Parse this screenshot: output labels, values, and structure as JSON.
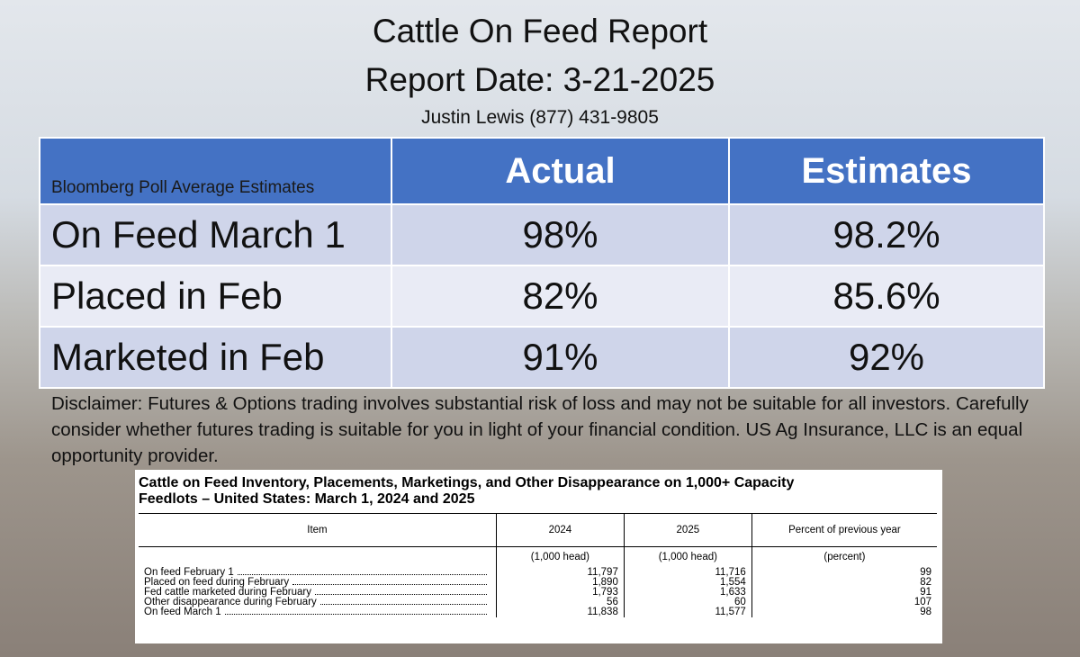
{
  "header": {
    "title": "Cattle On Feed Report",
    "subtitle": "Report Date: 3-21-2025",
    "contact": "Justin Lewis (877) 431-9805"
  },
  "summary_table": {
    "columns": [
      "Bloomberg Poll Average Estimates",
      "Actual",
      "Estimates"
    ],
    "rows": [
      [
        "On Feed March 1",
        "98%",
        "98.2%"
      ],
      [
        "Placed in Feb",
        "82%",
        "85.6%"
      ],
      [
        "Marketed in Feb",
        "91%",
        "92%"
      ]
    ]
  },
  "disclaimer": "Disclaimer:  Futures & Options trading involves substantial risk of loss and may not be suitable for all investors.  Carefully consider whether futures trading is suitable for you in light of your financial condition.  US Ag Insurance, LLC is an equal opportunity provider.",
  "usda_table": {
    "title": [
      "Cattle on Feed Inventory, Placements, Marketings, and Other Disappearance on 1,000+ Capacity",
      "Feedlots – United States: March 1, 2024 and 2025"
    ],
    "columns": [
      "Item",
      "2024",
      "2025",
      "Percent of previous year"
    ],
    "units": [
      "(1,000 head)",
      "(1,000 head)",
      "(percent)"
    ],
    "rows": [
      [
        "On feed February 1",
        "11,797",
        "11,716",
        "99"
      ],
      [
        "Placed on feed during February",
        "1,890",
        "1,554",
        "82"
      ],
      [
        "Fed cattle marketed during February",
        "1,793",
        "1,633",
        "91"
      ],
      [
        "Other disappearance during February",
        "56",
        "60",
        "107"
      ],
      [
        "On feed March 1",
        "11,838",
        "11,577",
        "98"
      ]
    ]
  }
}
